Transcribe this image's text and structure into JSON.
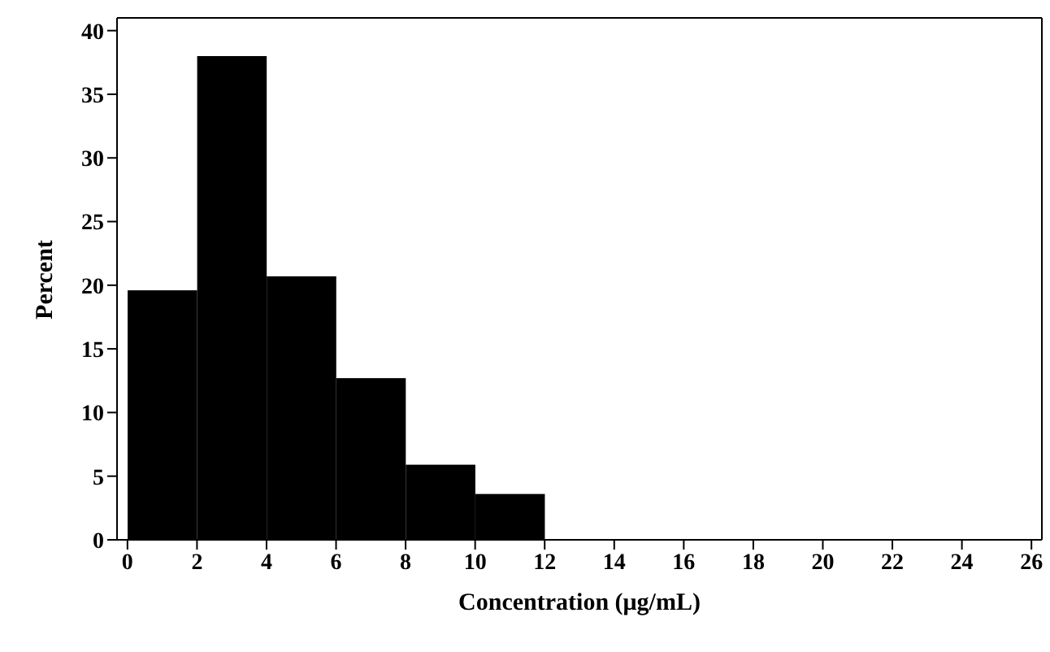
{
  "chart_data": {
    "type": "histogram",
    "xlabel": "Concentration (μg/mL)",
    "ylabel": "Percent",
    "bins": [
      0,
      2,
      4,
      6,
      8,
      10,
      12
    ],
    "values": [
      19.6,
      38.0,
      20.7,
      12.7,
      5.9,
      3.6
    ],
    "color": "#000000",
    "xlim": [
      -0.3,
      26.3
    ],
    "xticks": [
      0,
      2,
      4,
      6,
      8,
      10,
      12,
      14,
      16,
      18,
      20,
      22,
      24,
      26
    ],
    "ylim": [
      0,
      41
    ],
    "yticks": [
      0,
      5,
      10,
      15,
      20,
      25,
      30,
      35,
      40
    ],
    "grid": false
  }
}
